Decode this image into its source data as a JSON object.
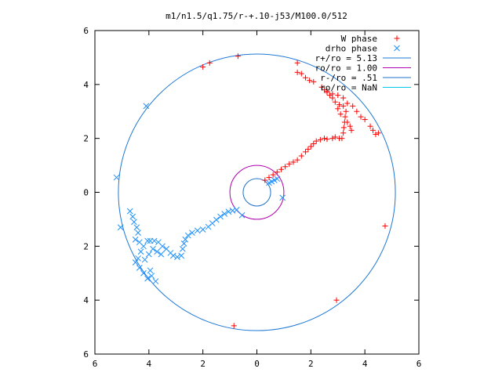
{
  "chart_data": {
    "type": "scatter",
    "title": "m1/n1.5/q1.75/r-+.10-j53/M100.0/512",
    "xlabel": "",
    "ylabel": "",
    "xlim": [
      -6,
      6
    ],
    "ylim": [
      -6,
      6
    ],
    "x_ticks": [
      -6,
      -4,
      -2,
      0,
      2,
      4,
      6
    ],
    "y_ticks": [
      -6,
      -4,
      -2,
      0,
      2,
      4,
      6
    ],
    "x_tick_labels": [
      "6",
      "4",
      "2",
      "0",
      "2",
      "4",
      "6"
    ],
    "y_tick_labels": [
      "6",
      "4",
      "2",
      "0",
      "2",
      "4",
      "6"
    ],
    "grid": false,
    "legend_position": "top-right",
    "series": [
      {
        "name": "W phase",
        "marker": "plus",
        "color": "#ff0000",
        "points": [
          [
            -2.0,
            4.65
          ],
          [
            -1.75,
            4.8
          ],
          [
            -0.7,
            5.05
          ],
          [
            1.5,
            4.8
          ],
          [
            1.5,
            4.45
          ],
          [
            1.65,
            4.4
          ],
          [
            1.8,
            4.25
          ],
          [
            1.95,
            4.15
          ],
          [
            2.1,
            4.1
          ],
          [
            2.4,
            3.9
          ],
          [
            2.6,
            3.75
          ],
          [
            2.8,
            3.65
          ],
          [
            3.0,
            3.6
          ],
          [
            3.2,
            3.5
          ],
          [
            3.35,
            3.3
          ],
          [
            3.55,
            3.2
          ],
          [
            3.7,
            3.0
          ],
          [
            3.85,
            2.8
          ],
          [
            4.0,
            2.7
          ],
          [
            4.2,
            2.45
          ],
          [
            4.3,
            2.3
          ],
          [
            4.4,
            2.15
          ],
          [
            4.5,
            2.2
          ],
          [
            4.75,
            -1.25
          ],
          [
            2.95,
            -4.0
          ],
          [
            -0.85,
            -4.95
          ],
          [
            0.3,
            0.45
          ],
          [
            0.45,
            0.55
          ],
          [
            0.6,
            0.65
          ],
          [
            0.75,
            0.75
          ],
          [
            0.9,
            0.85
          ],
          [
            1.05,
            0.95
          ],
          [
            1.2,
            1.05
          ],
          [
            1.35,
            1.12
          ],
          [
            1.5,
            1.2
          ],
          [
            1.65,
            1.35
          ],
          [
            1.8,
            1.5
          ],
          [
            1.9,
            1.6
          ],
          [
            2.0,
            1.7
          ],
          [
            2.1,
            1.8
          ],
          [
            2.2,
            1.9
          ],
          [
            2.35,
            1.95
          ],
          [
            2.5,
            2.0
          ],
          [
            2.6,
            1.97
          ],
          [
            2.8,
            2.0
          ],
          [
            2.9,
            2.05
          ],
          [
            3.05,
            2.0
          ],
          [
            3.15,
            2.0
          ],
          [
            3.2,
            2.2
          ],
          [
            3.22,
            2.4
          ],
          [
            3.25,
            2.6
          ],
          [
            3.27,
            2.8
          ],
          [
            3.3,
            3.0
          ],
          [
            3.2,
            3.2
          ],
          [
            3.05,
            3.25
          ],
          [
            2.9,
            3.35
          ],
          [
            2.8,
            3.5
          ],
          [
            2.7,
            3.6
          ],
          [
            2.6,
            3.7
          ],
          [
            2.5,
            3.8
          ],
          [
            3.0,
            3.1
          ],
          [
            3.1,
            2.9
          ],
          [
            3.35,
            2.6
          ],
          [
            3.45,
            2.45
          ],
          [
            3.5,
            2.3
          ]
        ]
      },
      {
        "name": "drho phase",
        "marker": "x",
        "color": "#1e90ff",
        "points": [
          [
            -4.1,
            3.2
          ],
          [
            -5.2,
            0.55
          ],
          [
            -5.05,
            -1.3
          ],
          [
            -4.7,
            -0.7
          ],
          [
            -4.6,
            -0.9
          ],
          [
            -4.55,
            -1.1
          ],
          [
            -4.45,
            -1.3
          ],
          [
            -4.4,
            -1.5
          ],
          [
            -4.5,
            -1.75
          ],
          [
            -4.35,
            -1.85
          ],
          [
            -4.2,
            -2.0
          ],
          [
            -4.3,
            -2.2
          ],
          [
            -4.4,
            -2.45
          ],
          [
            -4.5,
            -2.6
          ],
          [
            -4.35,
            -2.8
          ],
          [
            -4.2,
            -3.0
          ],
          [
            -4.05,
            -3.2
          ],
          [
            -3.9,
            -3.1
          ],
          [
            -3.75,
            -3.3
          ],
          [
            -3.95,
            -2.9
          ],
          [
            -4.15,
            -2.5
          ],
          [
            -4.0,
            -2.3
          ],
          [
            -3.85,
            -2.1
          ],
          [
            -3.7,
            -2.2
          ],
          [
            -3.55,
            -2.3
          ],
          [
            -4.05,
            -1.8
          ],
          [
            -3.95,
            -1.8
          ],
          [
            -3.8,
            -1.8
          ],
          [
            -3.65,
            -1.85
          ],
          [
            -3.5,
            -2.0
          ],
          [
            -3.35,
            -2.1
          ],
          [
            -3.2,
            -2.25
          ],
          [
            -3.1,
            -2.35
          ],
          [
            -2.95,
            -2.4
          ],
          [
            -2.8,
            -2.35
          ],
          [
            -2.75,
            -2.1
          ],
          [
            -2.7,
            -1.9
          ],
          [
            -2.65,
            -1.75
          ],
          [
            -2.55,
            -1.6
          ],
          [
            -2.4,
            -1.5
          ],
          [
            -2.2,
            -1.42
          ],
          [
            -2.0,
            -1.38
          ],
          [
            -1.8,
            -1.28
          ],
          [
            -1.65,
            -1.15
          ],
          [
            -1.5,
            -1.02
          ],
          [
            -1.35,
            -0.9
          ],
          [
            -1.2,
            -0.8
          ],
          [
            -1.05,
            -0.72
          ],
          [
            -0.9,
            -0.68
          ],
          [
            -0.75,
            -0.65
          ],
          [
            -0.55,
            -0.85
          ],
          [
            0.45,
            0.35
          ],
          [
            0.55,
            0.4
          ],
          [
            0.65,
            0.45
          ],
          [
            0.75,
            0.5
          ],
          [
            0.95,
            -0.2
          ]
        ]
      }
    ],
    "circles": [
      {
        "name": "r+/ro = 5.13",
        "radius": 5.13,
        "color": "#1e78d6"
      },
      {
        "name": "ro/ro = 1.00",
        "radius": 1.0,
        "color": "#b000b0"
      },
      {
        "name": "r-/ro = .51",
        "radius": 0.51,
        "color": "#2070c8"
      },
      {
        "name": "ro/ro = NaN",
        "radius": null,
        "color": "#00c8e8"
      }
    ]
  }
}
